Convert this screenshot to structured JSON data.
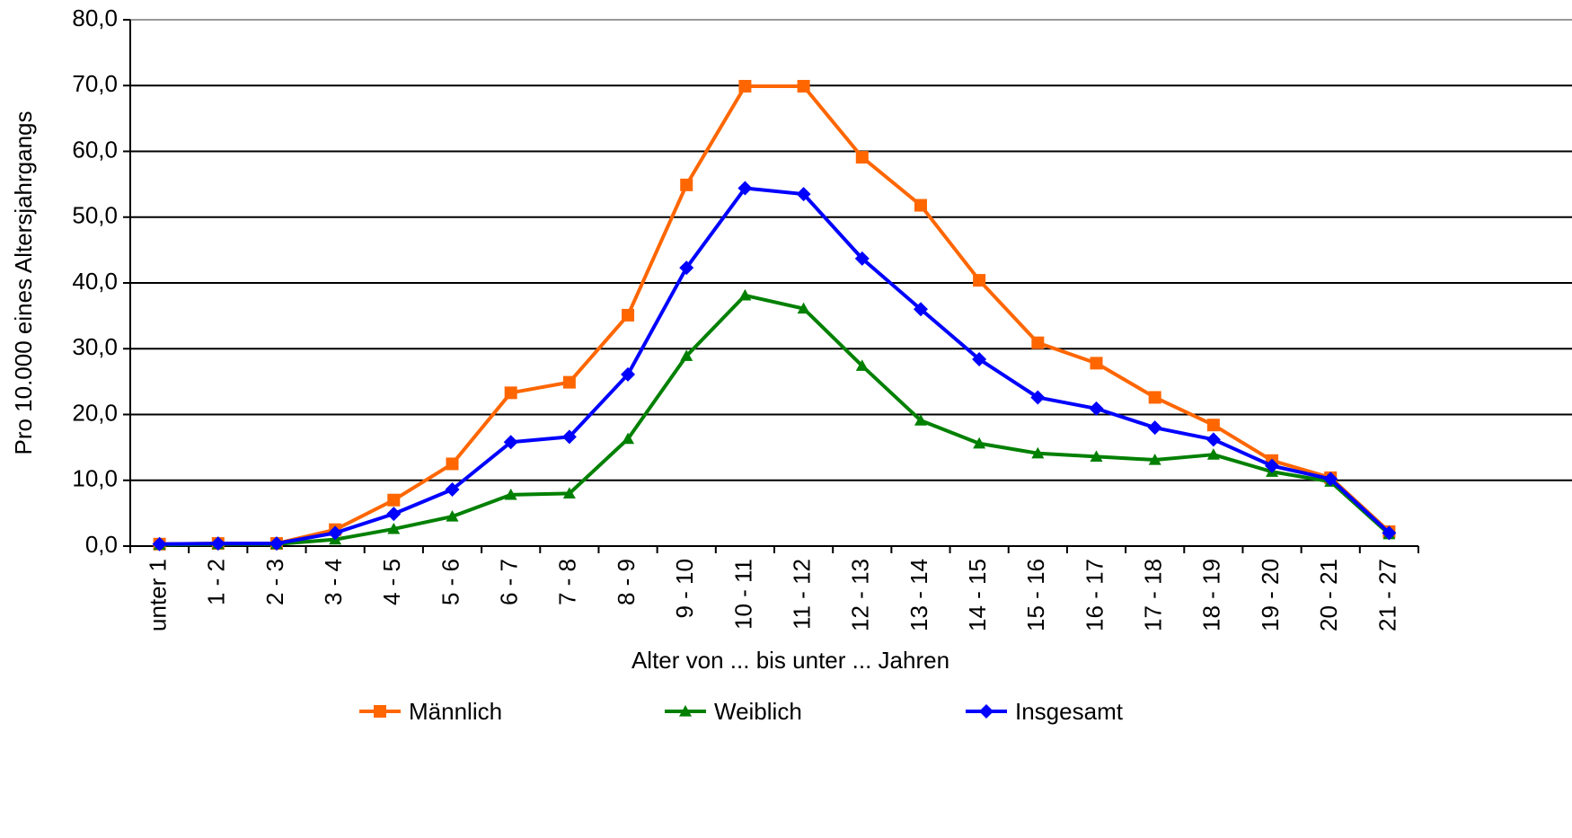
{
  "chart_data": {
    "type": "line",
    "y_label": "Pro 10.000 eines Altersjahrgangs",
    "x_label": "Alter von ... bis unter ... Jahren",
    "categories": [
      "unter 1",
      "1 - 2",
      "2 - 3",
      "3 - 4",
      "4 - 5",
      "5 - 6",
      "6 - 7",
      "7 - 8",
      "8 - 9",
      "9 - 10",
      "10 - 11",
      "11 - 12",
      "12 - 13",
      "13 - 14",
      "14 - 15",
      "15 - 16",
      "16 - 17",
      "17 - 18",
      "18 - 19",
      "19 - 20",
      "20 - 21",
      "21 - 27"
    ],
    "series": [
      {
        "name": "Männlich",
        "color": "#ff6600",
        "marker": "square",
        "values": [
          0.3,
          0.4,
          0.4,
          2.5,
          7.0,
          12.5,
          23.3,
          24.9,
          35.1,
          54.9,
          69.9,
          69.9,
          59.1,
          51.8,
          40.4,
          30.9,
          27.8,
          22.6,
          18.4,
          13.0,
          10.4,
          2.2
        ]
      },
      {
        "name": "Weiblich",
        "color": "#008000",
        "marker": "triangle",
        "values": [
          0.2,
          0.3,
          0.3,
          1.0,
          2.6,
          4.5,
          7.8,
          8.0,
          16.3,
          28.9,
          38.1,
          36.1,
          27.4,
          19.1,
          15.6,
          14.1,
          13.6,
          13.1,
          13.9,
          11.3,
          9.8,
          1.8
        ]
      },
      {
        "name": "Insgesamt",
        "color": "#0000ff",
        "marker": "diamond",
        "values": [
          0.3,
          0.4,
          0.4,
          2.0,
          4.9,
          8.6,
          15.8,
          16.6,
          26.1,
          42.3,
          54.4,
          53.5,
          43.7,
          36.0,
          28.4,
          22.6,
          20.9,
          18.0,
          16.2,
          12.2,
          10.2,
          2.0
        ]
      }
    ],
    "ylim": [
      0,
      80
    ],
    "yticks": [
      {
        "value": 0,
        "label": "0,0"
      },
      {
        "value": 10,
        "label": "10,0"
      },
      {
        "value": 20,
        "label": "20,0"
      },
      {
        "value": 30,
        "label": "30,0"
      },
      {
        "value": 40,
        "label": "40,0"
      },
      {
        "value": 50,
        "label": "50,0"
      },
      {
        "value": 60,
        "label": "60,0"
      },
      {
        "value": 70,
        "label": "70,0"
      },
      {
        "value": 80,
        "label": "80,0"
      }
    ],
    "grid": true,
    "legend": "bottom"
  }
}
